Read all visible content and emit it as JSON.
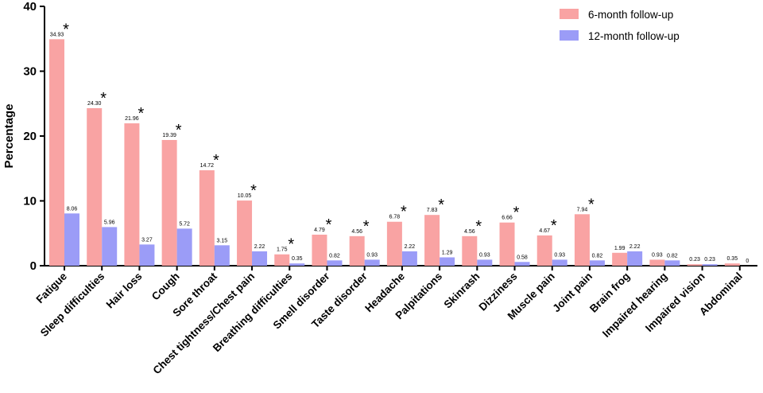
{
  "chart_data": {
    "type": "bar",
    "title": "",
    "xlabel": "",
    "ylabel": "Percentage",
    "ylim": [
      0,
      40
    ],
    "yticks": [
      0,
      10,
      20,
      30,
      40
    ],
    "grid": false,
    "legend_position": "top-right",
    "significance_marker": "*",
    "categories": [
      "Fatigue",
      "Sleep difficulties",
      "Hair loss",
      "Cough",
      "Sore throat",
      "Chest tightness/Chest pain",
      "Breathing difficulties",
      "Smell disorder",
      "Taste disorder",
      "Headache",
      "Palpitations",
      "Skinrash",
      "Dizziness",
      "Muscle pain",
      "Joint pain",
      "Brain frog",
      "Impaired hearing",
      "Impaired vision",
      "Abdominal"
    ],
    "series": [
      {
        "name": "6-month follow-up",
        "color": "#f9a3a3",
        "values": [
          34.93,
          24.3,
          21.96,
          19.39,
          14.72,
          10.05,
          1.75,
          4.79,
          4.56,
          6.78,
          7.83,
          4.56,
          6.66,
          4.67,
          7.94,
          1.99,
          0.93,
          0.23,
          0.35
        ],
        "labels": [
          "34.93",
          "24.30",
          "21.96",
          "19.39",
          "14.72",
          "10.05",
          "1.75",
          "4.79",
          "4.56",
          "6.78",
          "7.83",
          "4.56",
          "6.66",
          "4.67",
          "7.94",
          "1.99",
          "0.93",
          "0.23",
          "0.35"
        ]
      },
      {
        "name": "12-month follow-up",
        "color": "#9b9cf7",
        "values": [
          8.06,
          5.96,
          3.27,
          5.72,
          3.15,
          2.22,
          0.35,
          0.82,
          0.93,
          2.22,
          1.29,
          0.93,
          0.58,
          0.93,
          0.82,
          2.22,
          0.82,
          0.23,
          0
        ],
        "labels": [
          "8.06",
          "5.96",
          "3.27",
          "5.72",
          "3.15",
          "2.22",
          "0.35",
          "0.82",
          "0.93",
          "2.22",
          "1.29",
          "0.93",
          "0.58",
          "0.93",
          "0.82",
          "2.22",
          "0.82",
          "0.23",
          "0"
        ]
      }
    ],
    "significant": [
      true,
      true,
      true,
      true,
      true,
      true,
      true,
      true,
      true,
      true,
      true,
      true,
      true,
      true,
      true,
      false,
      false,
      false,
      false
    ]
  }
}
